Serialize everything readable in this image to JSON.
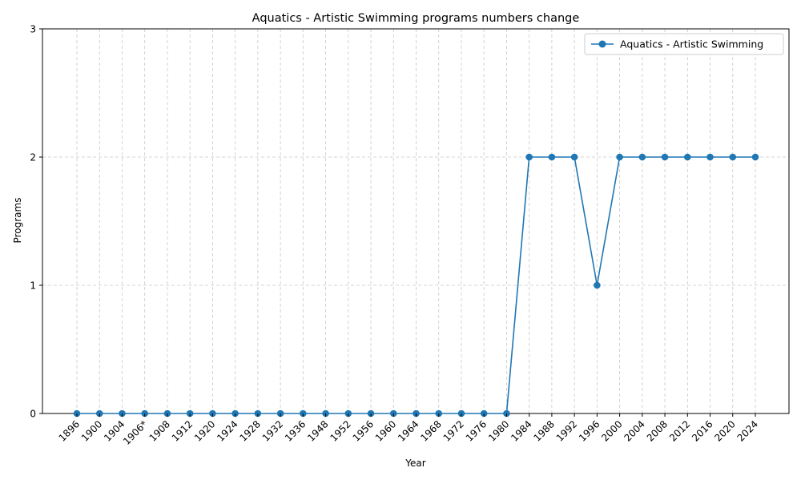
{
  "chart_data": {
    "type": "line",
    "title": "Aquatics - Artistic Swimming programs numbers change",
    "xlabel": "Year",
    "ylabel": "Programs",
    "categories": [
      "1896",
      "1900",
      "1904",
      "1906*",
      "1908",
      "1912",
      "1920",
      "1924",
      "1928",
      "1932",
      "1936",
      "1948",
      "1952",
      "1956",
      "1960",
      "1964",
      "1968",
      "1972",
      "1976",
      "1980",
      "1984",
      "1988",
      "1992",
      "1996",
      "2000",
      "2004",
      "2008",
      "2012",
      "2016",
      "2020",
      "2024"
    ],
    "series": [
      {
        "name": "Aquatics - Artistic Swimming",
        "color": "#1f77b4",
        "marker": "circle",
        "values": [
          0,
          0,
          0,
          0,
          0,
          0,
          0,
          0,
          0,
          0,
          0,
          0,
          0,
          0,
          0,
          0,
          0,
          0,
          0,
          0,
          2,
          2,
          2,
          1,
          2,
          2,
          2,
          2,
          2,
          2,
          2
        ]
      }
    ],
    "ylim": [
      0,
      3
    ],
    "yticks": [
      0,
      1,
      2,
      3
    ],
    "grid": true,
    "legend_position": "top-right"
  }
}
